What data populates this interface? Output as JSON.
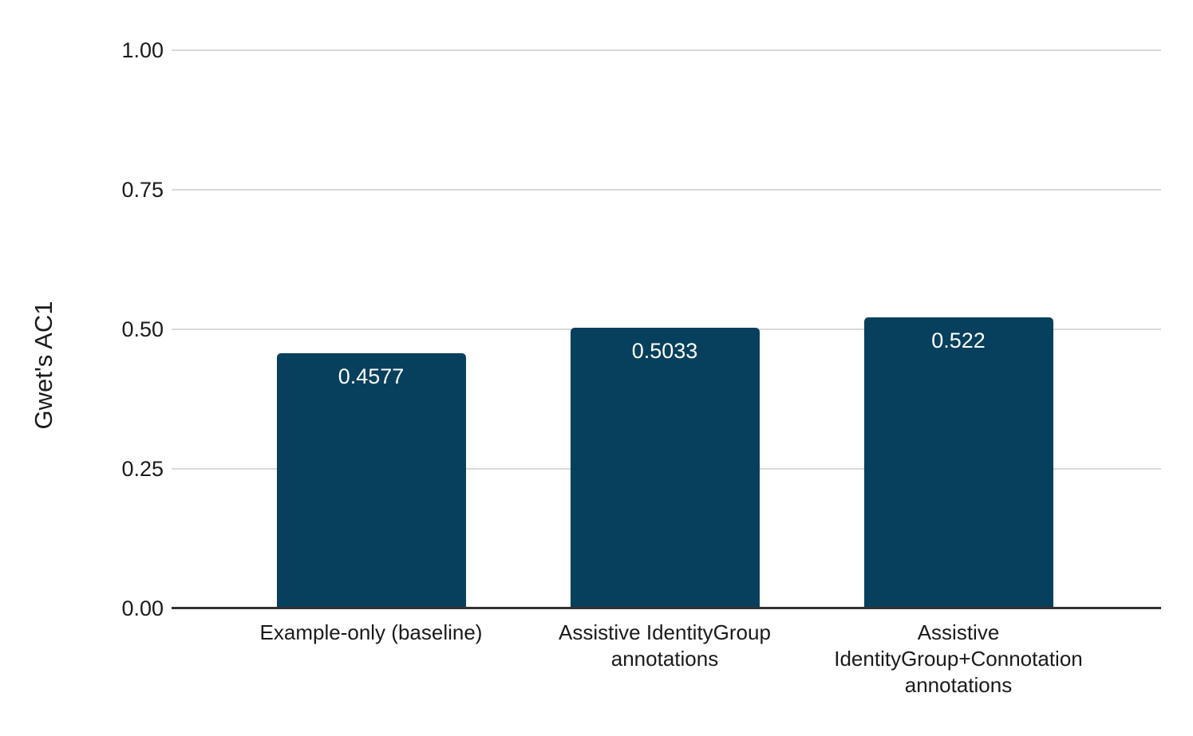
{
  "chart_data": {
    "type": "bar",
    "title": "",
    "xlabel": "",
    "ylabel": "Gwet's AC1",
    "categories": [
      "Example-only (baseline)",
      "Assistive IdentityGroup\nannotations",
      "Assistive\nIdentityGroup+Connotation\nannotations"
    ],
    "values": [
      0.4577,
      0.5033,
      0.522
    ],
    "value_labels": [
      "0.4577",
      "0.5033",
      "0.522"
    ],
    "ylim": [
      0,
      1
    ],
    "ytick_values": [
      0,
      0.25,
      0.5,
      0.75,
      1
    ],
    "ytick_labels": [
      "0.00",
      "0.25",
      "0.50",
      "0.75",
      "1.00"
    ],
    "grid": "horizontal",
    "legend": "none",
    "colors": {
      "bar": "#07405c",
      "value_label": "#ffffff",
      "gridline": "#d9d9d9",
      "axis_baseline": "#333333",
      "text": "#1a1a1a",
      "background": "#ffffff"
    }
  }
}
